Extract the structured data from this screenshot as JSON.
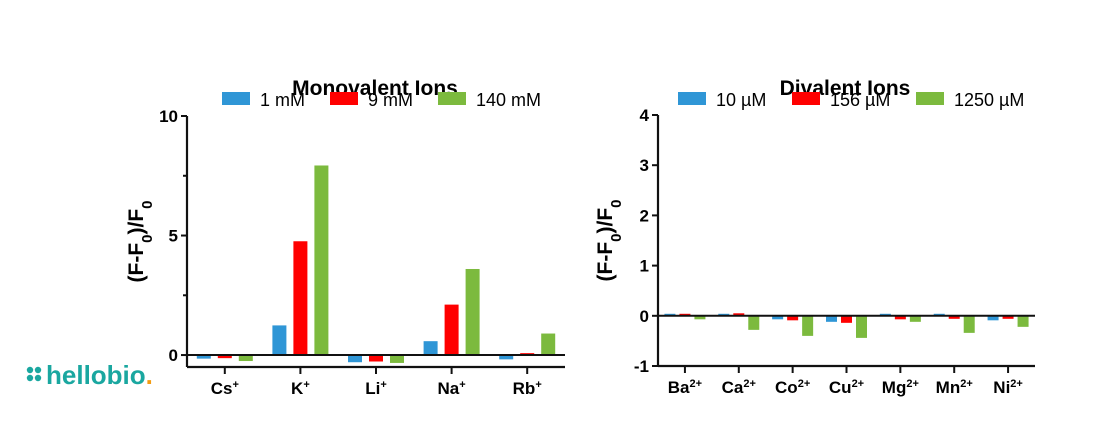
{
  "logo": {
    "text": "hellobio."
  },
  "colors": {
    "series": [
      "#2f96d6",
      "#ff0000",
      "#7cba3e"
    ],
    "logo_teal": "#1aa7a0",
    "logo_orange": "#f39c12"
  },
  "chart_data": [
    {
      "type": "bar",
      "title": "Monovalent Ions",
      "ylabel": "(F-F0)/F0",
      "ylim": [
        -0.5,
        10
      ],
      "yticks": [
        0,
        5,
        10
      ],
      "legend": "top",
      "categories": [
        "Cs",
        "K",
        "Li",
        "Na",
        "Rb"
      ],
      "category_sup": "+",
      "series": [
        {
          "name": "1 mM",
          "values": [
            -0.15,
            1.24,
            -0.3,
            0.58,
            -0.18
          ]
        },
        {
          "name": "9 mM",
          "values": [
            -0.13,
            4.76,
            -0.27,
            2.11,
            0.08
          ]
        },
        {
          "name": "140 mM",
          "values": [
            -0.25,
            7.93,
            -0.33,
            3.6,
            0.9
          ]
        }
      ]
    },
    {
      "type": "bar",
      "title": "Divalent Ions",
      "ylabel": "(F-F0)/F0",
      "ylim": [
        -1,
        4
      ],
      "yticks": [
        -1,
        0,
        1,
        2,
        3,
        4
      ],
      "legend": "top",
      "categories": [
        "Ba",
        "Ca",
        "Co",
        "Cu",
        "Mg",
        "Mn",
        "Ni"
      ],
      "category_sup": "2+",
      "series": [
        {
          "name": "10 µM",
          "values": [
            0.04,
            0.04,
            -0.07,
            -0.12,
            0.04,
            0.04,
            -0.09
          ]
        },
        {
          "name": "156 µM",
          "values": [
            0.04,
            0.05,
            -0.09,
            -0.14,
            -0.07,
            -0.06,
            -0.06
          ]
        },
        {
          "name": "1250 µM",
          "values": [
            -0.07,
            -0.28,
            -0.4,
            -0.44,
            -0.12,
            -0.34,
            -0.22
          ]
        }
      ]
    }
  ]
}
